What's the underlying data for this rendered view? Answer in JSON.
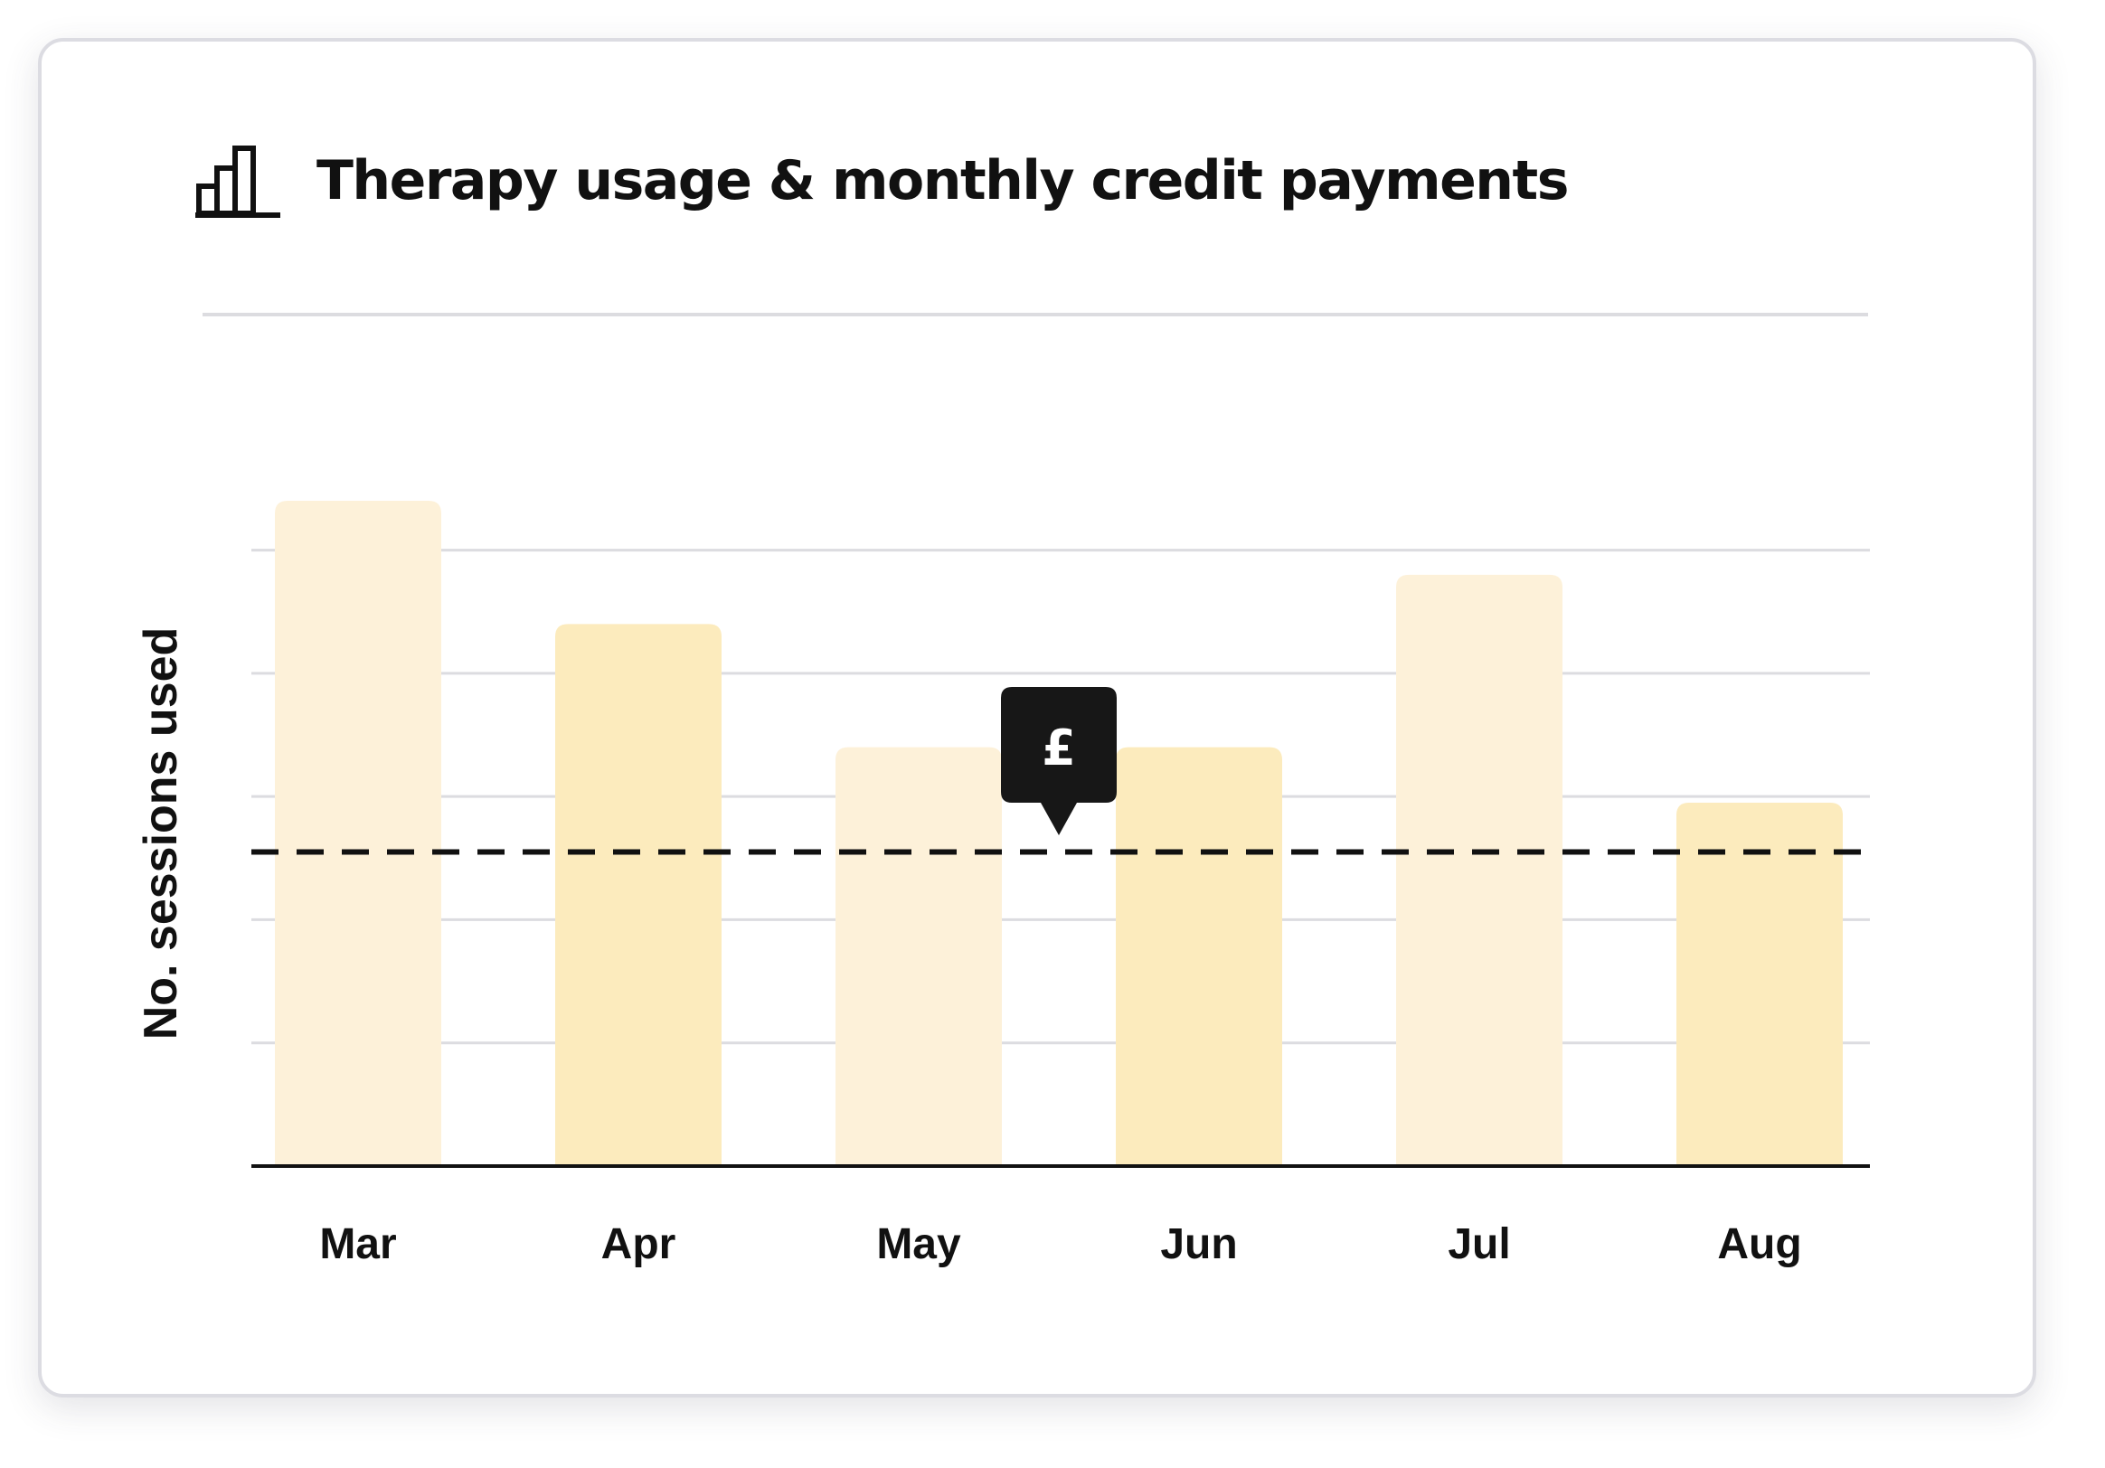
{
  "title": "Therapy usage & monthly credit payments",
  "icons": {
    "header": "bar-chart-icon",
    "marker": "pound-sign-icon"
  },
  "marker_symbol": "£",
  "colors": {
    "bar_light": "#fdf1d9",
    "bar_dark": "#fcebbd",
    "baseline": "#111111",
    "grid": "#dcdce0",
    "marker_bg": "#171717",
    "dashed_line": "#111111"
  },
  "chart_data": {
    "type": "bar",
    "title": "Therapy usage & monthly credit payments",
    "xlabel": "",
    "ylabel": "No. sessions used",
    "categories": [
      "Mar",
      "Apr",
      "May",
      "Jun",
      "Jul",
      "Aug"
    ],
    "values": [
      5.4,
      4.4,
      3.4,
      3.4,
      4.8,
      2.95
    ],
    "bar_colors": [
      "#fdf1d9",
      "#fcebbd",
      "#fdf1d9",
      "#fcebbd",
      "#fdf1d9",
      "#fcebbd"
    ],
    "ylim": [
      0,
      7
    ],
    "grid": true,
    "reference_line": {
      "style": "dashed",
      "value": 2.55
    },
    "marker": {
      "symbol": "£",
      "near": "Jun"
    }
  }
}
